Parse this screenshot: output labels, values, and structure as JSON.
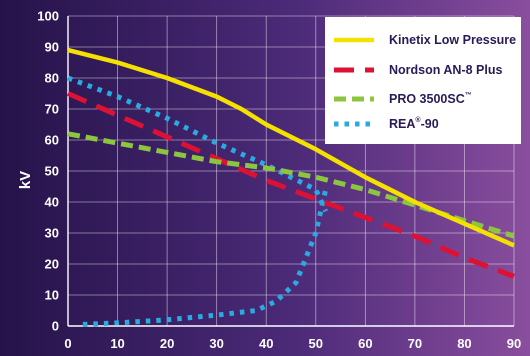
{
  "chart_data": {
    "type": "line",
    "xlabel": "",
    "ylabel": "kV",
    "xlim": [
      0,
      90
    ],
    "ylim": [
      0,
      100
    ],
    "xticks": [
      0,
      10,
      20,
      30,
      40,
      50,
      60,
      70,
      80,
      90
    ],
    "yticks": [
      0,
      10,
      20,
      30,
      40,
      50,
      60,
      70,
      80,
      90,
      100
    ],
    "grid": true,
    "legend_position": "top-right",
    "series": [
      {
        "name": "Kinetix Low Pressure",
        "color": "#f5e100",
        "style": "solid",
        "points": [
          [
            0,
            89
          ],
          [
            10,
            85
          ],
          [
            20,
            80
          ],
          [
            30,
            74
          ],
          [
            35,
            70
          ],
          [
            40,
            65
          ],
          [
            50,
            57
          ],
          [
            60,
            48
          ],
          [
            70,
            40
          ],
          [
            80,
            33
          ],
          [
            90,
            26
          ]
        ]
      },
      {
        "name": "Nordson AN-8 Plus",
        "color": "#dd1133",
        "style": "long-dash",
        "points": [
          [
            0,
            75
          ],
          [
            10,
            68
          ],
          [
            20,
            61
          ],
          [
            30,
            54
          ],
          [
            40,
            47
          ],
          [
            50,
            41
          ],
          [
            60,
            35
          ],
          [
            70,
            29
          ],
          [
            80,
            22
          ],
          [
            90,
            16
          ]
        ]
      },
      {
        "name": "PRO 3500SC",
        "trademark": "™",
        "color": "#8cc63f",
        "style": "dash",
        "points": [
          [
            0,
            62
          ],
          [
            10,
            59
          ],
          [
            20,
            56
          ],
          [
            30,
            53
          ],
          [
            40,
            51
          ],
          [
            50,
            48
          ],
          [
            60,
            44
          ],
          [
            70,
            39
          ],
          [
            80,
            34
          ],
          [
            90,
            29
          ]
        ]
      },
      {
        "name": "REA-90",
        "registered": "®",
        "color": "#29abe2",
        "style": "dot",
        "points": [
          [
            80,
            80
          ],
          [
            83,
            79
          ],
          [
            75,
            76
          ],
          [
            69,
            73
          ],
          [
            63,
            70
          ],
          [
            56,
            66
          ],
          [
            49,
            62
          ],
          [
            42,
            58
          ],
          [
            35,
            54
          ],
          [
            30,
            50
          ],
          [
            27,
            47
          ],
          [
            30,
            44
          ],
          [
            32,
            41
          ],
          [
            33,
            36
          ],
          [
            34,
            32
          ],
          [
            35,
            28
          ],
          [
            36,
            24
          ],
          [
            37,
            19
          ],
          [
            38,
            14
          ],
          [
            39,
            9
          ],
          [
            40,
            6
          ]
        ]
      }
    ],
    "rea_branches": {
      "upper": [
        [
          0,
          80
        ],
        [
          10,
          74
        ],
        [
          20,
          67
        ],
        [
          30,
          59
        ],
        [
          40,
          52
        ],
        [
          50,
          44
        ],
        [
          52,
          37
        ]
      ],
      "lower": [
        [
          3,
          0.5
        ],
        [
          10,
          1
        ],
        [
          20,
          2
        ],
        [
          30,
          3.5
        ],
        [
          38,
          5
        ],
        [
          42,
          8
        ],
        [
          46,
          14
        ],
        [
          48,
          22
        ],
        [
          50,
          30
        ],
        [
          51,
          37
        ],
        [
          52,
          44
        ]
      ]
    }
  },
  "legend": {
    "items": [
      {
        "label": "Kinetix Low Pressure",
        "sup": ""
      },
      {
        "label": "Nordson AN-8 Plus",
        "sup": ""
      },
      {
        "label": "PRO 3500SC",
        "sup": "™"
      },
      {
        "label": "REA-90",
        "sup": "®"
      }
    ]
  }
}
